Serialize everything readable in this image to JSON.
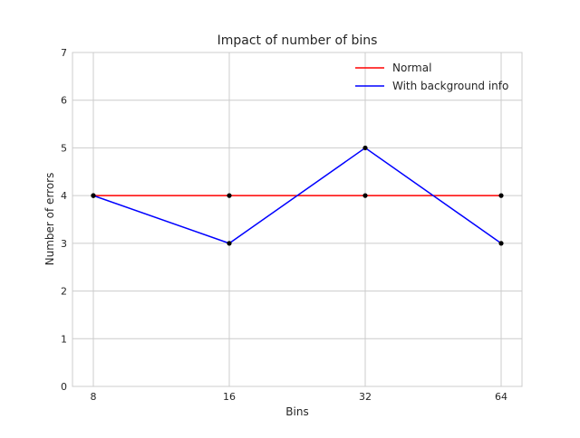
{
  "chart_data": {
    "type": "line",
    "title": "Impact of number of bins",
    "xlabel": "Bins",
    "ylabel": "Number of errors",
    "categories": [
      "8",
      "16",
      "32",
      "64"
    ],
    "ylim": [
      0,
      7
    ],
    "yticks": [
      "0",
      "1",
      "2",
      "3",
      "4",
      "5",
      "6",
      "7"
    ],
    "grid": true,
    "legend_position": "top-right",
    "series": [
      {
        "name": "Normal",
        "color": "#ff0000",
        "values": [
          4,
          4,
          4,
          4
        ]
      },
      {
        "name": "With background info",
        "color": "#0000ff",
        "values": [
          4,
          3,
          5,
          3
        ]
      }
    ],
    "marker_color": "#000000"
  }
}
